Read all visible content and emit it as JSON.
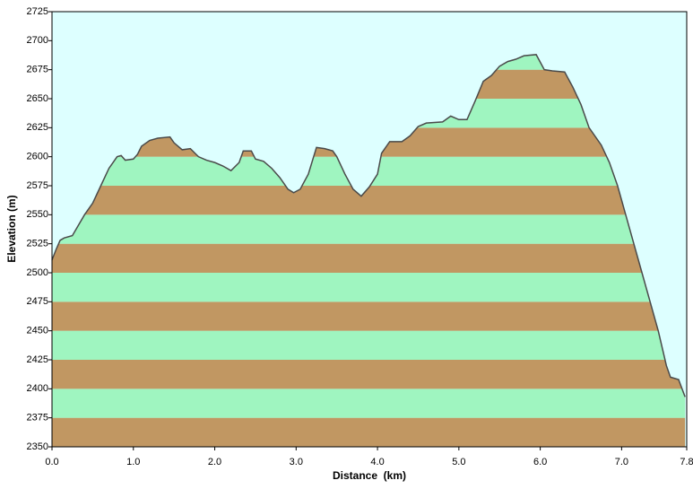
{
  "chart_data": {
    "type": "area",
    "x_label": "Distance  (km)",
    "y_label": "Elevation (m)",
    "x": [
      0.0,
      0.05,
      0.1,
      0.15,
      0.25,
      0.3,
      0.4,
      0.5,
      0.6,
      0.7,
      0.8,
      0.85,
      0.9,
      1.0,
      1.05,
      1.1,
      1.2,
      1.3,
      1.45,
      1.5,
      1.6,
      1.7,
      1.8,
      1.9,
      2.0,
      2.1,
      2.2,
      2.3,
      2.35,
      2.45,
      2.5,
      2.6,
      2.7,
      2.8,
      2.9,
      2.97,
      3.05,
      3.15,
      3.25,
      3.35,
      3.45,
      3.5,
      3.6,
      3.7,
      3.8,
      3.9,
      4.0,
      4.05,
      4.15,
      4.3,
      4.4,
      4.5,
      4.6,
      4.8,
      4.9,
      5.0,
      5.1,
      5.2,
      5.3,
      5.4,
      5.5,
      5.6,
      5.7,
      5.8,
      5.95,
      6.05,
      6.15,
      6.3,
      6.4,
      6.5,
      6.6,
      6.75,
      6.85,
      6.95,
      7.05,
      7.15,
      7.25,
      7.35,
      7.45,
      7.55,
      7.6,
      7.7,
      7.78
    ],
    "series": [
      {
        "color": "#4a4a4a",
        "values": [
          2511,
          2520,
          2528,
          2530,
          2532,
          2538,
          2550,
          2560,
          2575,
          2590,
          2600,
          2601,
          2597,
          2598,
          2602,
          2609,
          2614,
          2616,
          2617,
          2612,
          2606,
          2607,
          2600,
          2597,
          2595,
          2592,
          2588,
          2595,
          2605,
          2605,
          2598,
          2596,
          2590,
          2582,
          2572,
          2569,
          2572,
          2585,
          2608,
          2607,
          2605,
          2600,
          2585,
          2572,
          2566,
          2574,
          2585,
          2603,
          2613,
          2613,
          2618,
          2626,
          2629,
          2630,
          2635,
          2632,
          2632,
          2648,
          2665,
          2670,
          2678,
          2682,
          2684,
          2687,
          2688,
          2675,
          2674,
          2673,
          2660,
          2645,
          2625,
          2610,
          2595,
          2575,
          2550,
          2525,
          2500,
          2475,
          2450,
          2420,
          2410,
          2408,
          2393
        ]
      }
    ],
    "band_colors": [
      "#c19762",
      "#9ff5c0"
    ],
    "background": "#ddffff",
    "xlim": [
      0,
      7.8
    ],
    "xticks": [
      {
        "value": 0,
        "label": "0.0"
      },
      {
        "value": 1,
        "label": "1.0"
      },
      {
        "value": 2,
        "label": "2.0"
      },
      {
        "value": 3,
        "label": "3.0"
      },
      {
        "value": 4,
        "label": "4.0"
      },
      {
        "value": 5,
        "label": "5.0"
      },
      {
        "value": 6,
        "label": "6.0"
      },
      {
        "value": 7,
        "label": "7.0"
      },
      7.8
    ],
    "ylim": [
      2350,
      2725
    ],
    "yticks": [
      2350,
      2375,
      2400,
      2425,
      2450,
      2475,
      2500,
      2525,
      2550,
      2575,
      2600,
      2625,
      2650,
      2675,
      2700,
      2725
    ]
  }
}
